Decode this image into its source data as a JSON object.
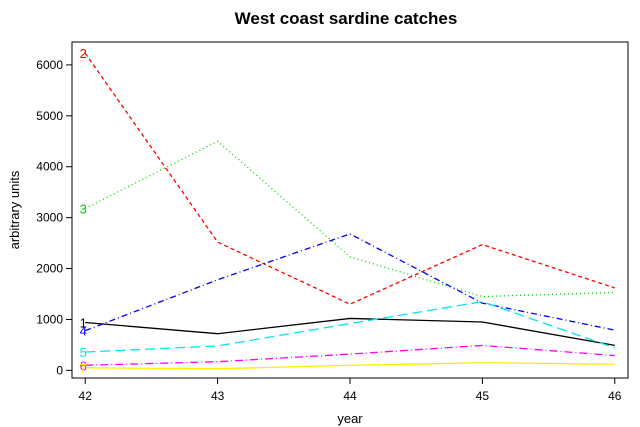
{
  "chart_data": {
    "type": "line",
    "title": "West coast sardine catches",
    "xlabel": "year",
    "ylabel": "arbitrary units",
    "x": [
      42,
      43,
      44,
      45,
      46
    ],
    "xlim": [
      41.9,
      46.1
    ],
    "ylim": [
      -150,
      6450
    ],
    "yticks": [
      0,
      1000,
      2000,
      3000,
      4000,
      5000,
      6000
    ],
    "xticks": [
      42,
      43,
      44,
      45,
      46
    ],
    "grid": false,
    "legend": "none",
    "series": [
      {
        "name": "1",
        "label": "1",
        "values": [
          940,
          720,
          1020,
          950,
          490
        ],
        "color": "#000000",
        "dash": "solid"
      },
      {
        "name": "2",
        "label": "2",
        "values": [
          6230,
          2520,
          1300,
          2470,
          1620
        ],
        "color": "#ff0000",
        "dash": "4,3"
      },
      {
        "name": "3",
        "label": "3",
        "values": [
          3180,
          4500,
          2230,
          1450,
          1530
        ],
        "color": "#00cc00",
        "dash": "1,3"
      },
      {
        "name": "4",
        "label": "4",
        "values": [
          780,
          1780,
          2680,
          1320,
          790
        ],
        "color": "#0000ff",
        "dash": "6,3,1,3"
      },
      {
        "name": "5",
        "label": "5",
        "values": [
          360,
          480,
          920,
          1350,
          440
        ],
        "color": "#00e5ee",
        "dash": "10,5"
      },
      {
        "name": "6",
        "label": "6",
        "values": [
          100,
          170,
          320,
          490,
          290
        ],
        "color": "#ff00ff",
        "dash": "8,3,1,3"
      },
      {
        "name": "7",
        "label": "7",
        "values": [
          50,
          30,
          100,
          150,
          120
        ],
        "color": "#ffee00",
        "dash": "solid"
      }
    ]
  }
}
